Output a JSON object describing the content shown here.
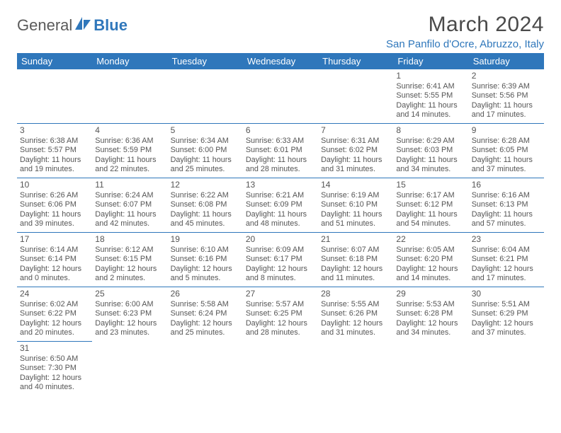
{
  "logo": {
    "text1": "General",
    "text2": "Blue"
  },
  "title": "March 2024",
  "location": "San Panfilo d'Ocre, Abruzzo, Italy",
  "colors": {
    "accent": "#2f77bb",
    "text": "#555555",
    "bg": "#ffffff"
  },
  "weekdays": [
    "Sunday",
    "Monday",
    "Tuesday",
    "Wednesday",
    "Thursday",
    "Friday",
    "Saturday"
  ],
  "weeks": [
    [
      null,
      null,
      null,
      null,
      null,
      {
        "n": "1",
        "l1": "Sunrise: 6:41 AM",
        "l2": "Sunset: 5:55 PM",
        "l3": "Daylight: 11 hours",
        "l4": "and 14 minutes."
      },
      {
        "n": "2",
        "l1": "Sunrise: 6:39 AM",
        "l2": "Sunset: 5:56 PM",
        "l3": "Daylight: 11 hours",
        "l4": "and 17 minutes."
      }
    ],
    [
      {
        "n": "3",
        "l1": "Sunrise: 6:38 AM",
        "l2": "Sunset: 5:57 PM",
        "l3": "Daylight: 11 hours",
        "l4": "and 19 minutes."
      },
      {
        "n": "4",
        "l1": "Sunrise: 6:36 AM",
        "l2": "Sunset: 5:59 PM",
        "l3": "Daylight: 11 hours",
        "l4": "and 22 minutes."
      },
      {
        "n": "5",
        "l1": "Sunrise: 6:34 AM",
        "l2": "Sunset: 6:00 PM",
        "l3": "Daylight: 11 hours",
        "l4": "and 25 minutes."
      },
      {
        "n": "6",
        "l1": "Sunrise: 6:33 AM",
        "l2": "Sunset: 6:01 PM",
        "l3": "Daylight: 11 hours",
        "l4": "and 28 minutes."
      },
      {
        "n": "7",
        "l1": "Sunrise: 6:31 AM",
        "l2": "Sunset: 6:02 PM",
        "l3": "Daylight: 11 hours",
        "l4": "and 31 minutes."
      },
      {
        "n": "8",
        "l1": "Sunrise: 6:29 AM",
        "l2": "Sunset: 6:03 PM",
        "l3": "Daylight: 11 hours",
        "l4": "and 34 minutes."
      },
      {
        "n": "9",
        "l1": "Sunrise: 6:28 AM",
        "l2": "Sunset: 6:05 PM",
        "l3": "Daylight: 11 hours",
        "l4": "and 37 minutes."
      }
    ],
    [
      {
        "n": "10",
        "l1": "Sunrise: 6:26 AM",
        "l2": "Sunset: 6:06 PM",
        "l3": "Daylight: 11 hours",
        "l4": "and 39 minutes."
      },
      {
        "n": "11",
        "l1": "Sunrise: 6:24 AM",
        "l2": "Sunset: 6:07 PM",
        "l3": "Daylight: 11 hours",
        "l4": "and 42 minutes."
      },
      {
        "n": "12",
        "l1": "Sunrise: 6:22 AM",
        "l2": "Sunset: 6:08 PM",
        "l3": "Daylight: 11 hours",
        "l4": "and 45 minutes."
      },
      {
        "n": "13",
        "l1": "Sunrise: 6:21 AM",
        "l2": "Sunset: 6:09 PM",
        "l3": "Daylight: 11 hours",
        "l4": "and 48 minutes."
      },
      {
        "n": "14",
        "l1": "Sunrise: 6:19 AM",
        "l2": "Sunset: 6:10 PM",
        "l3": "Daylight: 11 hours",
        "l4": "and 51 minutes."
      },
      {
        "n": "15",
        "l1": "Sunrise: 6:17 AM",
        "l2": "Sunset: 6:12 PM",
        "l3": "Daylight: 11 hours",
        "l4": "and 54 minutes."
      },
      {
        "n": "16",
        "l1": "Sunrise: 6:16 AM",
        "l2": "Sunset: 6:13 PM",
        "l3": "Daylight: 11 hours",
        "l4": "and 57 minutes."
      }
    ],
    [
      {
        "n": "17",
        "l1": "Sunrise: 6:14 AM",
        "l2": "Sunset: 6:14 PM",
        "l3": "Daylight: 12 hours",
        "l4": "and 0 minutes."
      },
      {
        "n": "18",
        "l1": "Sunrise: 6:12 AM",
        "l2": "Sunset: 6:15 PM",
        "l3": "Daylight: 12 hours",
        "l4": "and 2 minutes."
      },
      {
        "n": "19",
        "l1": "Sunrise: 6:10 AM",
        "l2": "Sunset: 6:16 PM",
        "l3": "Daylight: 12 hours",
        "l4": "and 5 minutes."
      },
      {
        "n": "20",
        "l1": "Sunrise: 6:09 AM",
        "l2": "Sunset: 6:17 PM",
        "l3": "Daylight: 12 hours",
        "l4": "and 8 minutes."
      },
      {
        "n": "21",
        "l1": "Sunrise: 6:07 AM",
        "l2": "Sunset: 6:18 PM",
        "l3": "Daylight: 12 hours",
        "l4": "and 11 minutes."
      },
      {
        "n": "22",
        "l1": "Sunrise: 6:05 AM",
        "l2": "Sunset: 6:20 PM",
        "l3": "Daylight: 12 hours",
        "l4": "and 14 minutes."
      },
      {
        "n": "23",
        "l1": "Sunrise: 6:04 AM",
        "l2": "Sunset: 6:21 PM",
        "l3": "Daylight: 12 hours",
        "l4": "and 17 minutes."
      }
    ],
    [
      {
        "n": "24",
        "l1": "Sunrise: 6:02 AM",
        "l2": "Sunset: 6:22 PM",
        "l3": "Daylight: 12 hours",
        "l4": "and 20 minutes."
      },
      {
        "n": "25",
        "l1": "Sunrise: 6:00 AM",
        "l2": "Sunset: 6:23 PM",
        "l3": "Daylight: 12 hours",
        "l4": "and 23 minutes."
      },
      {
        "n": "26",
        "l1": "Sunrise: 5:58 AM",
        "l2": "Sunset: 6:24 PM",
        "l3": "Daylight: 12 hours",
        "l4": "and 25 minutes."
      },
      {
        "n": "27",
        "l1": "Sunrise: 5:57 AM",
        "l2": "Sunset: 6:25 PM",
        "l3": "Daylight: 12 hours",
        "l4": "and 28 minutes."
      },
      {
        "n": "28",
        "l1": "Sunrise: 5:55 AM",
        "l2": "Sunset: 6:26 PM",
        "l3": "Daylight: 12 hours",
        "l4": "and 31 minutes."
      },
      {
        "n": "29",
        "l1": "Sunrise: 5:53 AM",
        "l2": "Sunset: 6:28 PM",
        "l3": "Daylight: 12 hours",
        "l4": "and 34 minutes."
      },
      {
        "n": "30",
        "l1": "Sunrise: 5:51 AM",
        "l2": "Sunset: 6:29 PM",
        "l3": "Daylight: 12 hours",
        "l4": "and 37 minutes."
      }
    ],
    [
      {
        "n": "31",
        "l1": "Sunrise: 6:50 AM",
        "l2": "Sunset: 7:30 PM",
        "l3": "Daylight: 12 hours",
        "l4": "and 40 minutes."
      },
      null,
      null,
      null,
      null,
      null,
      null
    ]
  ]
}
